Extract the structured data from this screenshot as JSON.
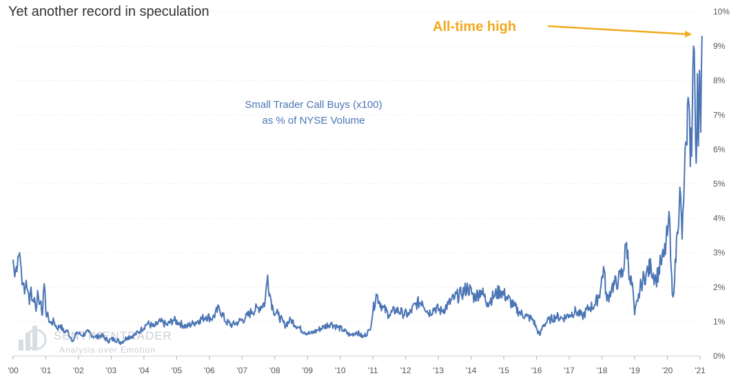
{
  "chart_data": {
    "type": "line",
    "title": "Yet another record in speculation",
    "xlabel": "",
    "ylabel": "",
    "annotation": {
      "line1": "Small Trader Call Buys (x100)",
      "line2": "as % of NYSE Volume"
    },
    "callout": "All-time high",
    "watermark": {
      "name": "SENTIMENTRADER",
      "tagline": "Analysis over Emotion"
    },
    "x_tick_labels": [
      "'00",
      "'01",
      "'02",
      "'03",
      "'04",
      "'05",
      "'06",
      "'07",
      "'08",
      "'09",
      "'10",
      "'11",
      "'12",
      "'13",
      "'14",
      "'15",
      "'16",
      "'17",
      "'18",
      "'19",
      "'20",
      "'21"
    ],
    "y_tick_labels": [
      "0%",
      "1%",
      "2%",
      "3%",
      "4%",
      "5%",
      "6%",
      "7%",
      "8%",
      "9%",
      "10%"
    ],
    "xlim": [
      2000.0,
      2021.0
    ],
    "ylim": [
      0,
      10
    ],
    "grid": true,
    "colors": {
      "line": "#4a74b4",
      "callout": "#f2a91c",
      "grid": "#e8e8e8"
    },
    "series": [
      {
        "values": [
          [
            2000.0,
            2.8
          ],
          [
            2000.05,
            2.3
          ],
          [
            2000.1,
            2.6
          ],
          [
            2000.15,
            2.9
          ],
          [
            2000.2,
            3.0
          ],
          [
            2000.25,
            2.5
          ],
          [
            2000.3,
            2.1
          ],
          [
            2000.35,
            1.8
          ],
          [
            2000.4,
            2.2
          ],
          [
            2000.45,
            1.9
          ],
          [
            2000.5,
            1.5
          ],
          [
            2000.55,
            2.0
          ],
          [
            2000.6,
            1.6
          ],
          [
            2000.65,
            1.7
          ],
          [
            2000.7,
            1.3
          ],
          [
            2000.75,
            1.9
          ],
          [
            2000.8,
            1.5
          ],
          [
            2000.85,
            1.6
          ],
          [
            2000.9,
            1.2
          ],
          [
            2000.95,
            2.1
          ],
          [
            2001.0,
            1.3
          ],
          [
            2001.08,
            1.1
          ],
          [
            2001.15,
            0.95
          ],
          [
            2001.25,
            1.0
          ],
          [
            2001.35,
            0.8
          ],
          [
            2001.45,
            0.9
          ],
          [
            2001.55,
            0.7
          ],
          [
            2001.65,
            0.75
          ],
          [
            2001.75,
            0.55
          ],
          [
            2001.85,
            0.45
          ],
          [
            2001.95,
            0.7
          ],
          [
            2002.1,
            0.6
          ],
          [
            2002.3,
            0.7
          ],
          [
            2002.5,
            0.55
          ],
          [
            2002.7,
            0.6
          ],
          [
            2002.9,
            0.45
          ],
          [
            2003.1,
            0.5
          ],
          [
            2003.3,
            0.4
          ],
          [
            2003.5,
            0.55
          ],
          [
            2003.7,
            0.6
          ],
          [
            2003.9,
            0.75
          ],
          [
            2004.1,
            0.95
          ],
          [
            2004.3,
            0.85
          ],
          [
            2004.5,
            1.0
          ],
          [
            2004.7,
            0.9
          ],
          [
            2004.9,
            1.05
          ],
          [
            2005.1,
            0.95
          ],
          [
            2005.3,
            0.85
          ],
          [
            2005.5,
            0.95
          ],
          [
            2005.7,
            1.05
          ],
          [
            2005.9,
            1.15
          ],
          [
            2006.1,
            1.1
          ],
          [
            2006.3,
            1.4
          ],
          [
            2006.5,
            1.0
          ],
          [
            2006.7,
            0.9
          ],
          [
            2006.9,
            1.0
          ],
          [
            2007.1,
            1.1
          ],
          [
            2007.3,
            1.3
          ],
          [
            2007.5,
            1.4
          ],
          [
            2007.7,
            1.55
          ],
          [
            2007.78,
            2.35
          ],
          [
            2007.85,
            1.8
          ],
          [
            2007.95,
            1.35
          ],
          [
            2008.1,
            1.2
          ],
          [
            2008.3,
            0.9
          ],
          [
            2008.5,
            1.05
          ],
          [
            2008.7,
            0.85
          ],
          [
            2008.9,
            0.7
          ],
          [
            2009.1,
            0.65
          ],
          [
            2009.3,
            0.75
          ],
          [
            2009.5,
            0.85
          ],
          [
            2009.7,
            0.95
          ],
          [
            2009.9,
            0.85
          ],
          [
            2010.1,
            0.75
          ],
          [
            2010.3,
            0.6
          ],
          [
            2010.5,
            0.7
          ],
          [
            2010.7,
            0.55
          ],
          [
            2010.9,
            0.75
          ],
          [
            2011.0,
            1.3
          ],
          [
            2011.1,
            1.8
          ],
          [
            2011.3,
            1.4
          ],
          [
            2011.5,
            1.2
          ],
          [
            2011.7,
            1.35
          ],
          [
            2011.9,
            1.25
          ],
          [
            2012.1,
            1.2
          ],
          [
            2012.3,
            1.5
          ],
          [
            2012.5,
            1.6
          ],
          [
            2012.7,
            1.25
          ],
          [
            2012.9,
            1.4
          ],
          [
            2013.1,
            1.3
          ],
          [
            2013.3,
            1.5
          ],
          [
            2013.5,
            1.7
          ],
          [
            2013.7,
            1.8
          ],
          [
            2013.9,
            2.0
          ],
          [
            2014.1,
            1.7
          ],
          [
            2014.3,
            1.9
          ],
          [
            2014.5,
            1.55
          ],
          [
            2014.7,
            1.75
          ],
          [
            2014.9,
            1.9
          ],
          [
            2015.1,
            1.7
          ],
          [
            2015.3,
            1.45
          ],
          [
            2015.5,
            1.25
          ],
          [
            2015.7,
            1.15
          ],
          [
            2015.9,
            1.05
          ],
          [
            2016.0,
            0.8
          ],
          [
            2016.1,
            0.6
          ],
          [
            2016.2,
            0.9
          ],
          [
            2016.4,
            1.05
          ],
          [
            2016.6,
            1.15
          ],
          [
            2016.8,
            1.1
          ],
          [
            2017.0,
            1.2
          ],
          [
            2017.2,
            1.3
          ],
          [
            2017.4,
            1.15
          ],
          [
            2017.6,
            1.4
          ],
          [
            2017.8,
            1.5
          ],
          [
            2017.95,
            1.9
          ],
          [
            2018.05,
            2.6
          ],
          [
            2018.15,
            1.6
          ],
          [
            2018.3,
            2.0
          ],
          [
            2018.5,
            2.2
          ],
          [
            2018.65,
            2.5
          ],
          [
            2018.75,
            3.3
          ],
          [
            2018.85,
            2.3
          ],
          [
            2018.95,
            1.9
          ],
          [
            2019.0,
            1.2
          ],
          [
            2019.1,
            1.6
          ],
          [
            2019.2,
            2.1
          ],
          [
            2019.35,
            2.4
          ],
          [
            2019.5,
            2.6
          ],
          [
            2019.65,
            2.2
          ],
          [
            2019.8,
            2.7
          ],
          [
            2019.9,
            2.9
          ],
          [
            2020.0,
            3.5
          ],
          [
            2020.05,
            4.2
          ],
          [
            2020.1,
            2.8
          ],
          [
            2020.15,
            1.8
          ],
          [
            2020.22,
            2.2
          ],
          [
            2020.3,
            3.6
          ],
          [
            2020.38,
            4.9
          ],
          [
            2020.45,
            3.4
          ],
          [
            2020.52,
            5.2
          ],
          [
            2020.58,
            6.2
          ],
          [
            2020.65,
            7.4
          ],
          [
            2020.7,
            5.5
          ],
          [
            2020.76,
            6.9
          ],
          [
            2020.8,
            9.0
          ],
          [
            2020.84,
            7.8
          ],
          [
            2020.88,
            5.6
          ],
          [
            2020.92,
            8.2
          ],
          [
            2020.95,
            6.1
          ],
          [
            2020.98,
            8.3
          ],
          [
            2021.0,
            7.6
          ],
          [
            2021.02,
            6.5
          ],
          [
            2021.04,
            8.3
          ],
          [
            2021.06,
            9.3
          ]
        ]
      }
    ]
  }
}
